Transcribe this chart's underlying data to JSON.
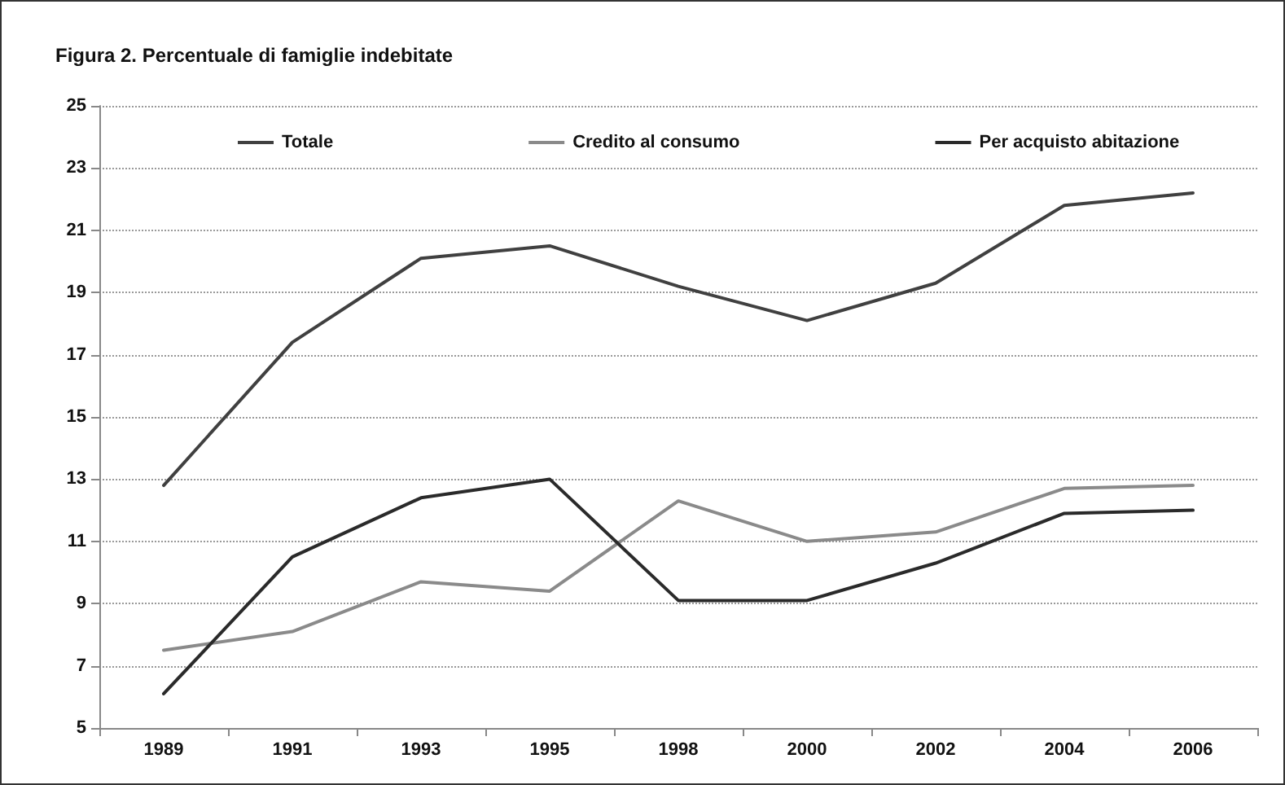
{
  "chart_data": {
    "type": "line",
    "title": "Figura 2. Percentuale di famiglie indebitate",
    "categories": [
      "1989",
      "1991",
      "1993",
      "1995",
      "1998",
      "2000",
      "2002",
      "2004",
      "2006"
    ],
    "series": [
      {
        "name": "Totale",
        "color": "#404040",
        "values": [
          12.8,
          17.4,
          20.1,
          20.5,
          19.2,
          18.1,
          19.3,
          21.8,
          22.2
        ]
      },
      {
        "name": "Credito al consumo",
        "color": "#8a8a8a",
        "values": [
          7.5,
          8.1,
          9.7,
          9.4,
          12.3,
          11.0,
          11.3,
          12.7,
          12.8
        ]
      },
      {
        "name": "Per acquisto abitazione",
        "color": "#2a2a2a",
        "values": [
          6.1,
          10.5,
          12.4,
          13.0,
          9.1,
          9.1,
          10.3,
          11.9,
          12.0
        ]
      }
    ],
    "ylim": [
      5,
      25
    ],
    "yticks": [
      5,
      7,
      9,
      11,
      13,
      15,
      17,
      19,
      21,
      23,
      25
    ],
    "grid": "y",
    "legend": "top",
    "marker": "none",
    "line_style": "solid"
  }
}
